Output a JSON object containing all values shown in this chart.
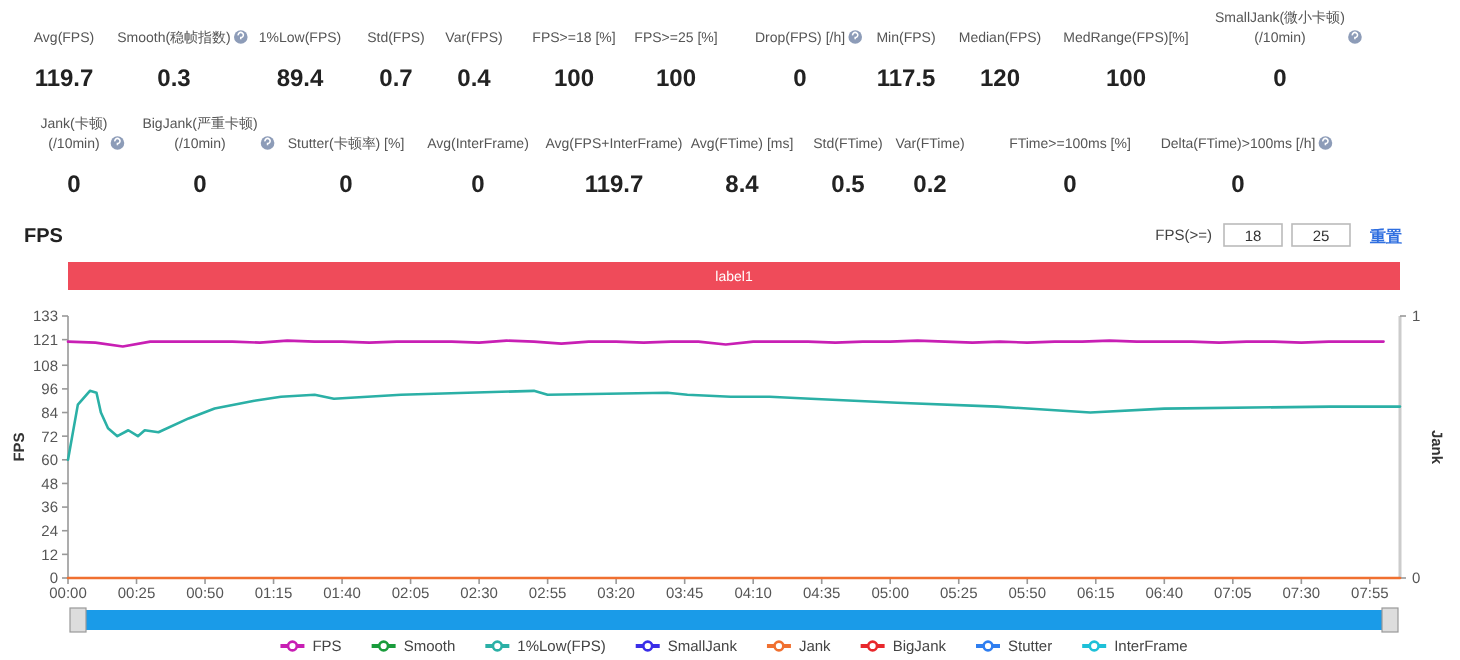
{
  "chart_data": [
    {
      "type": "other",
      "categories": [
        "Avg(FPS)",
        "Smooth(稳帧指数)",
        "1%Low(FPS)",
        "Std(FPS)",
        "Var(FPS)",
        "FPS>=18 [%]",
        "FPS>=25 [%]",
        "Drop(FPS) [/h]",
        "Min(FPS)",
        "Median(FPS)",
        "MedRange(FPS)[%]",
        "SmallJank(微小卡顿)\n(/10min)",
        "Jank(卡顿)\n(/10min)",
        "BigJank(严重卡顿)\n(/10min)",
        "Stutter(卡顿率) [%]",
        "Avg(InterFrame)",
        "Avg(FPS+InterFrame)",
        "Avg(FTime) [ms]",
        "Std(FTime)",
        "Var(FTime)",
        "FTime>=100ms [%]",
        "Delta(FTime)>100ms [/h]"
      ],
      "values": [
        119.7,
        0.3,
        89.4,
        0.7,
        0.4,
        100,
        100,
        0,
        117.5,
        120,
        100,
        0,
        0,
        0,
        0,
        0,
        119.7,
        8.4,
        0.5,
        0.2,
        0,
        0
      ],
      "data_labels": true
    },
    {
      "type": "line",
      "title": "FPS",
      "ylabel": "FPS",
      "y2label": "Jank",
      "annotations": [
        "FPS(>=)",
        "18",
        "25",
        "重置",
        "label1"
      ],
      "xlim": [
        0,
        486
      ],
      "xticks": [
        {
          "value": 0,
          "label": "00:00"
        },
        {
          "value": 25,
          "label": "00:25"
        },
        {
          "value": 50,
          "label": "00:50"
        },
        {
          "value": 75,
          "label": "01:15"
        },
        {
          "value": 100,
          "label": "01:40"
        },
        {
          "value": 125,
          "label": "02:05"
        },
        {
          "value": 150,
          "label": "02:30"
        },
        {
          "value": 175,
          "label": "02:55"
        },
        {
          "value": 200,
          "label": "03:20"
        },
        {
          "value": 225,
          "label": "03:45"
        },
        {
          "value": 250,
          "label": "04:10"
        },
        {
          "value": 275,
          "label": "04:35"
        },
        {
          "value": 300,
          "label": "05:00"
        },
        {
          "value": 325,
          "label": "05:25"
        },
        {
          "value": 350,
          "label": "05:50"
        },
        {
          "value": 375,
          "label": "06:15"
        },
        {
          "value": 400,
          "label": "06:40"
        },
        {
          "value": 425,
          "label": "07:05"
        },
        {
          "value": 450,
          "label": "07:30"
        },
        {
          "value": 475,
          "label": "07:55"
        }
      ],
      "ylim": [
        0,
        133
      ],
      "yticks": [
        0,
        12,
        24,
        36,
        48,
        60,
        72,
        84,
        96,
        108,
        121,
        133
      ],
      "y2lim": [
        0,
        1
      ],
      "y2ticks": [
        0,
        1
      ],
      "legend": "bottom",
      "series": [
        {
          "name": "FPS",
          "color": "#c81fb4",
          "x": [
            0,
            10,
            20,
            30,
            40,
            50,
            60,
            70,
            80,
            90,
            100,
            110,
            120,
            130,
            140,
            150,
            160,
            170,
            180,
            190,
            200,
            210,
            220,
            230,
            240,
            250,
            260,
            270,
            280,
            290,
            300,
            310,
            320,
            330,
            340,
            350,
            360,
            370,
            380,
            390,
            400,
            410,
            420,
            430,
            440,
            450,
            460,
            470,
            480
          ],
          "values": [
            120,
            119.5,
            117.5,
            120,
            120,
            120,
            120,
            119.5,
            120.5,
            120,
            120,
            119.5,
            120,
            120,
            120,
            119.5,
            120.5,
            120,
            119,
            120,
            120,
            119.5,
            120,
            120,
            118.5,
            120,
            120,
            120,
            119.5,
            120,
            120,
            120.5,
            120,
            119.5,
            120,
            119.5,
            120,
            120,
            120.5,
            120,
            120,
            120,
            119.5,
            120,
            120,
            119.5,
            120,
            120,
            120
          ]
        },
        {
          "name": "Smooth",
          "color": "#1a9c3c",
          "values": [
            null
          ]
        },
        {
          "name": "1%Low(FPS)",
          "color": "#2bb0a6",
          "x": [
            0,
            3.6,
            8,
            10.4,
            12,
            14.6,
            18,
            22,
            25.5,
            28,
            33,
            44,
            53.5,
            68,
            77.7,
            90,
            97,
            121.5,
            145.8,
            170,
            175,
            218.7,
            226,
            241.8,
            256,
            271,
            302.6,
            339,
            373,
            400,
            460.5,
            486
          ],
          "values": [
            60,
            88,
            95,
            94,
            84,
            76,
            72,
            75,
            72,
            75,
            74,
            81,
            86,
            90,
            92,
            93,
            91,
            93,
            94,
            95,
            93,
            94,
            93,
            92,
            92,
            91,
            89,
            87,
            84,
            86,
            87,
            87
          ]
        },
        {
          "name": "SmallJank",
          "color": "#3a2ee8",
          "values": [
            null
          ]
        },
        {
          "name": "Jank",
          "color": "#f07030",
          "x": [
            0,
            486
          ],
          "values": [
            0,
            0
          ]
        },
        {
          "name": "BigJank",
          "color": "#e8282c",
          "values": [
            null
          ]
        },
        {
          "name": "Stutter",
          "color": "#2f7ef0",
          "values": [
            null
          ]
        },
        {
          "name": "InterFrame",
          "color": "#1ec0d8",
          "values": [
            null
          ]
        }
      ]
    }
  ]
}
